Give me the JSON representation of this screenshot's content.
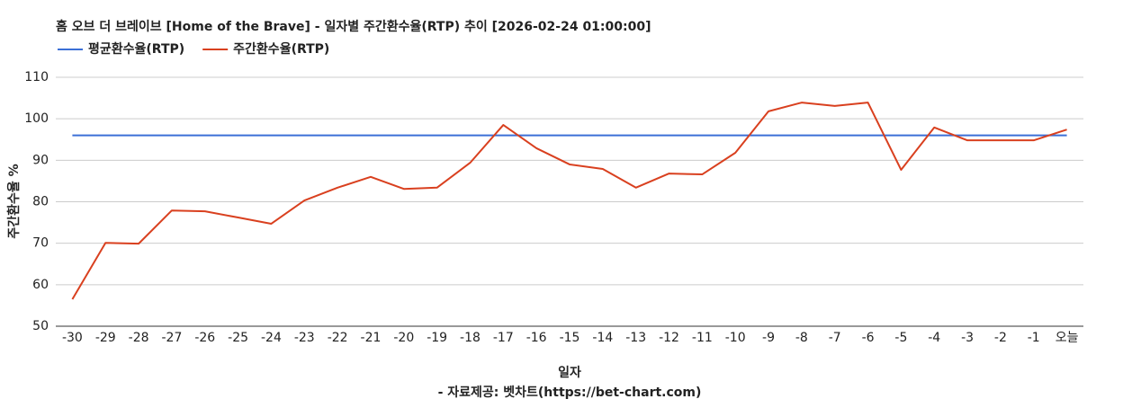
{
  "chart_data": {
    "type": "line",
    "title": "홈 오브 더 브레이브 [Home of the Brave] - 일자별 주간환수율(RTP) 추이 [2026-02-24 01:00:00]",
    "x_label": "일자",
    "y_label": "주간환수율 %",
    "footer": "- 자료제공: 벳차트(https://bet-chart.com)",
    "categories": [
      "-30",
      "-29",
      "-28",
      "-27",
      "-26",
      "-25",
      "-24",
      "-23",
      "-22",
      "-21",
      "-20",
      "-19",
      "-18",
      "-17",
      "-16",
      "-15",
      "-14",
      "-13",
      "-12",
      "-11",
      "-10",
      "-9",
      "-8",
      "-7",
      "-6",
      "-5",
      "-4",
      "-3",
      "-2",
      "-1",
      "오늘"
    ],
    "series": [
      {
        "name": "평균환수율(RTP)",
        "color": "#3b6fd6",
        "values": [
          96,
          96,
          96,
          96,
          96,
          96,
          96,
          96,
          96,
          96,
          96,
          96,
          96,
          96,
          96,
          96,
          96,
          96,
          96,
          96,
          96,
          96,
          96,
          96,
          96,
          96,
          96,
          96,
          96,
          96,
          96
        ]
      },
      {
        "name": "주간환수율(RTP)",
        "color": "#d9401f",
        "values": [
          56.5,
          70.1,
          69.9,
          77.9,
          77.7,
          76.2,
          74.7,
          80.3,
          83.4,
          86,
          83.1,
          83.4,
          89.4,
          98.5,
          92.9,
          89,
          87.9,
          83.4,
          86.8,
          86.6,
          91.8,
          101.8,
          103.9,
          103.1,
          103.9,
          87.7,
          97.9,
          94.8,
          94.8,
          94.8,
          97.4
        ]
      }
    ],
    "ylim": [
      50,
      110
    ],
    "yticks": [
      50,
      60,
      70,
      80,
      90,
      100,
      110
    ],
    "grid": true,
    "legend": "top-left"
  }
}
